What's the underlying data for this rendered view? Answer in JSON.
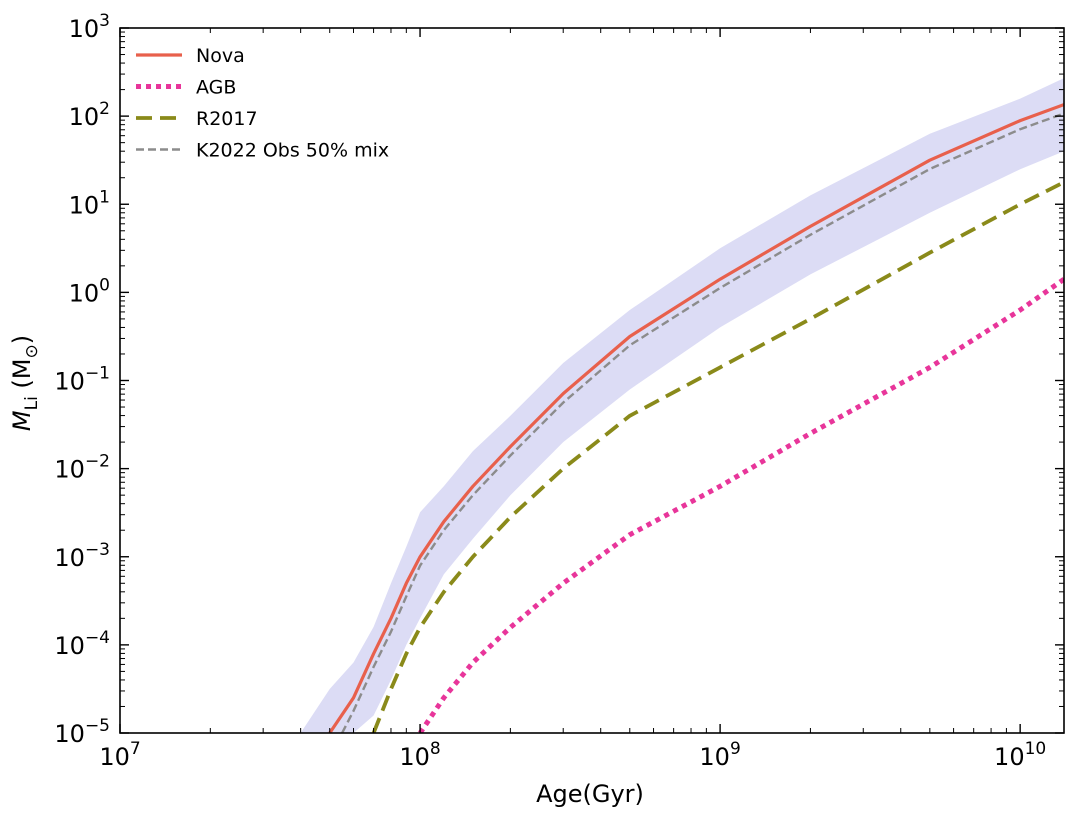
{
  "chart_data": {
    "type": "line",
    "title": "",
    "xlabel": "Age(Gyr)",
    "ylabel_main": "M",
    "ylabel_sub": "Li",
    "ylabel_unit_open": " (M",
    "ylabel_unit_sub": "⊙",
    "ylabel_unit_close": ")",
    "xscale": "log",
    "yscale": "log",
    "xlim": [
      10000000,
      14000000000
    ],
    "ylim": [
      1e-05,
      1000
    ],
    "legend_position": "top-left",
    "x_ticks": [
      {
        "value": 10000000,
        "base": "10",
        "exp": "7"
      },
      {
        "value": 100000000,
        "base": "10",
        "exp": "8"
      },
      {
        "value": 1000000000,
        "base": "10",
        "exp": "9"
      },
      {
        "value": 10000000000,
        "base": "10",
        "exp": "10"
      }
    ],
    "y_ticks": [
      {
        "value": 1e-05,
        "base": "10",
        "exp": "−5"
      },
      {
        "value": 0.0001,
        "base": "10",
        "exp": "−4"
      },
      {
        "value": 0.001,
        "base": "10",
        "exp": "−3"
      },
      {
        "value": 0.01,
        "base": "10",
        "exp": "−2"
      },
      {
        "value": 0.1,
        "base": "10",
        "exp": "−1"
      },
      {
        "value": 1,
        "base": "10",
        "exp": "0"
      },
      {
        "value": 10,
        "base": "10",
        "exp": "1"
      },
      {
        "value": 100,
        "base": "10",
        "exp": "2"
      },
      {
        "value": 1000,
        "base": "10",
        "exp": "3"
      }
    ],
    "band": {
      "name": "Nova uncertainty",
      "color": "#dcdcf5",
      "x": [
        40000000,
        50000000,
        60000000,
        70000000,
        80000000,
        90000000,
        100000000,
        120000000,
        150000000,
        200000000,
        300000000,
        500000000,
        1000000000,
        2000000000,
        5000000000,
        10000000000,
        14000000000
      ],
      "lower": [
        1e-05,
        1e-05,
        1e-05,
        1.58e-05,
        4e-05,
        0.0001,
        0.0002,
        0.00063,
        0.0016,
        0.005,
        0.02,
        0.079,
        0.4,
        1.6,
        8,
        25,
        40
      ],
      "upper": [
        1e-05,
        3.16e-05,
        6.31e-05,
        0.00016,
        0.0005,
        0.0013,
        0.0032,
        0.0063,
        0.0158,
        0.0398,
        0.158,
        0.631,
        3.16,
        12.6,
        63,
        158,
        270
      ]
    },
    "series": [
      {
        "name": "Nova",
        "color": "#e8604c",
        "style": "solid",
        "x": [
          50000000,
          60000000,
          70000000,
          80000000,
          90000000,
          100000000,
          120000000,
          150000000,
          200000000,
          300000000,
          500000000,
          1000000000,
          2000000000,
          5000000000,
          10000000000,
          14000000000
        ],
        "values": [
          1e-05,
          2.51e-05,
          7.94e-05,
          0.0002,
          0.0005,
          0.001,
          0.0025,
          0.0063,
          0.0178,
          0.071,
          0.316,
          1.41,
          5.6,
          31.6,
          89,
          135
        ]
      },
      {
        "name": "AGB",
        "color": "#e8359a",
        "style": "dotted",
        "x": [
          100000000,
          120000000,
          150000000,
          200000000,
          300000000,
          500000000,
          1000000000,
          2000000000,
          5000000000,
          10000000000,
          14000000000
        ],
        "values": [
          1e-05,
          2.51e-05,
          6.31e-05,
          0.000158,
          0.000501,
          0.00178,
          0.0063,
          0.0251,
          0.141,
          0.631,
          1.41
        ]
      },
      {
        "name": "R2017",
        "color": "#8a8a1a",
        "style": "dashed",
        "x": [
          70000000,
          80000000,
          90000000,
          100000000,
          120000000,
          150000000,
          200000000,
          300000000,
          500000000,
          1000000000,
          2000000000,
          5000000000,
          10000000000,
          14000000000
        ],
        "values": [
          1e-05,
          3.16e-05,
          7.94e-05,
          0.000158,
          0.000398,
          0.001,
          0.00282,
          0.01,
          0.0398,
          0.141,
          0.5,
          2.82,
          10,
          17.8
        ]
      },
      {
        "name": "K2022 Obs 50% mix",
        "color": "#8c8c8c",
        "style": "dashed-thin",
        "x": [
          55000000,
          60000000,
          70000000,
          80000000,
          90000000,
          100000000,
          120000000,
          150000000,
          200000000,
          300000000,
          500000000,
          1000000000,
          2000000000,
          5000000000,
          10000000000,
          14000000000
        ],
        "values": [
          1e-05,
          1.78e-05,
          5.62e-05,
          0.000141,
          0.000355,
          0.000794,
          0.002,
          0.005,
          0.0141,
          0.0562,
          0.251,
          1.12,
          4.5,
          25.1,
          71,
          107
        ]
      }
    ]
  }
}
